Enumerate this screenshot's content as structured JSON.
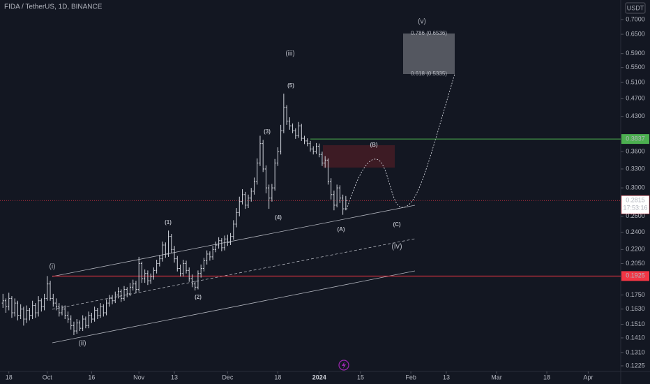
{
  "chart_data": {
    "type": "ohlc",
    "title": "FIDA / TetherUS, 1D, BINANCE",
    "currency": "USDT",
    "countdown": "17:53:16",
    "log_scale": true,
    "grid": false,
    "color": "#d1d4dc",
    "ylim": [
      0.1191,
      0.7724
    ],
    "yticks": [
      {
        "value": 0.7,
        "label": "0.7000"
      },
      {
        "value": 0.65,
        "label": "0.6500"
      },
      {
        "value": 0.59,
        "label": "0.5900"
      },
      {
        "value": 0.55,
        "label": "0.5500"
      },
      {
        "value": 0.51,
        "label": "0.5100"
      },
      {
        "value": 0.47,
        "label": "0.4700"
      },
      {
        "value": 0.43,
        "label": "0.4300"
      },
      {
        "value": 0.36,
        "label": "0.3600"
      },
      {
        "value": 0.33,
        "label": "0.3300"
      },
      {
        "value": 0.3,
        "label": "0.3000"
      },
      {
        "value": 0.26,
        "label": "0.2600"
      },
      {
        "value": 0.24,
        "label": "0.2400"
      },
      {
        "value": 0.22,
        "label": "0.2200"
      },
      {
        "value": 0.205,
        "label": "0.2050"
      },
      {
        "value": 0.175,
        "label": "0.1750"
      },
      {
        "value": 0.163,
        "label": "0.1630"
      },
      {
        "value": 0.151,
        "label": "0.1510"
      },
      {
        "value": 0.141,
        "label": "0.1410"
      },
      {
        "value": 0.131,
        "label": "0.1310"
      },
      {
        "value": 0.1225,
        "label": "0.1225"
      }
    ],
    "xlim": [
      "2023-09-15",
      "2024-04-12"
    ],
    "xticks": [
      {
        "value": "2023-09-18",
        "label": "18"
      },
      {
        "value": "2023-10-01",
        "label": "Oct"
      },
      {
        "value": "2023-10-16",
        "label": "16"
      },
      {
        "value": "2023-11-01",
        "label": "Nov"
      },
      {
        "value": "2023-11-13",
        "label": "13"
      },
      {
        "value": "2023-12-01",
        "label": "Dec"
      },
      {
        "value": "2023-12-18",
        "label": "18"
      },
      {
        "value": "2024-01-01",
        "label": "2024"
      },
      {
        "value": "2024-01-15",
        "label": "15"
      },
      {
        "value": "2024-02-01",
        "label": "Feb"
      },
      {
        "value": "2024-02-13",
        "label": "13"
      },
      {
        "value": "2024-03-01",
        "label": "Mar"
      },
      {
        "value": "2024-03-18",
        "label": "18"
      },
      {
        "value": "2024-04-01",
        "label": "Apr"
      }
    ],
    "x": [
      "2023-09-16",
      "2023-09-17",
      "2023-09-18",
      "2023-09-19",
      "2023-09-20",
      "2023-09-21",
      "2023-09-22",
      "2023-09-23",
      "2023-09-24",
      "2023-09-25",
      "2023-09-26",
      "2023-09-27",
      "2023-09-28",
      "2023-09-29",
      "2023-09-30",
      "2023-10-01",
      "2023-10-02",
      "2023-10-03",
      "2023-10-04",
      "2023-10-05",
      "2023-10-06",
      "2023-10-07",
      "2023-10-08",
      "2023-10-09",
      "2023-10-10",
      "2023-10-11",
      "2023-10-12",
      "2023-10-13",
      "2023-10-14",
      "2023-10-15",
      "2023-10-16",
      "2023-10-17",
      "2023-10-18",
      "2023-10-19",
      "2023-10-20",
      "2023-10-21",
      "2023-10-22",
      "2023-10-23",
      "2023-10-24",
      "2023-10-25",
      "2023-10-26",
      "2023-10-27",
      "2023-10-28",
      "2023-10-29",
      "2023-10-30",
      "2023-10-31",
      "2023-11-01",
      "2023-11-02",
      "2023-11-03",
      "2023-11-04",
      "2023-11-05",
      "2023-11-06",
      "2023-11-07",
      "2023-11-08",
      "2023-11-09",
      "2023-11-10",
      "2023-11-11",
      "2023-11-12",
      "2023-11-13",
      "2023-11-14",
      "2023-11-15",
      "2023-11-16",
      "2023-11-17",
      "2023-11-18",
      "2023-11-19",
      "2023-11-20",
      "2023-11-21",
      "2023-11-22",
      "2023-11-23",
      "2023-11-24",
      "2023-11-25",
      "2023-11-26",
      "2023-11-27",
      "2023-11-28",
      "2023-11-29",
      "2023-11-30",
      "2023-12-01",
      "2023-12-02",
      "2023-12-03",
      "2023-12-04",
      "2023-12-05",
      "2023-12-06",
      "2023-12-07",
      "2023-12-08",
      "2023-12-09",
      "2023-12-10",
      "2023-12-11",
      "2023-12-12",
      "2023-12-13",
      "2023-12-14",
      "2023-12-15",
      "2023-12-16",
      "2023-12-17",
      "2023-12-18",
      "2023-12-19",
      "2023-12-20",
      "2023-12-21",
      "2023-12-22",
      "2023-12-23",
      "2023-12-24",
      "2023-12-25",
      "2023-12-26",
      "2023-12-27",
      "2023-12-28",
      "2023-12-29",
      "2023-12-30",
      "2023-12-31",
      "2024-01-01",
      "2024-01-02",
      "2024-01-03",
      "2024-01-04",
      "2024-01-05",
      "2024-01-06",
      "2024-01-07",
      "2024-01-08",
      "2024-01-09",
      "2024-01-10"
    ],
    "open": [
      0.168,
      0.17,
      0.165,
      0.172,
      0.16,
      0.168,
      0.158,
      0.163,
      0.155,
      0.162,
      0.158,
      0.166,
      0.16,
      0.17,
      0.165,
      0.172,
      0.185,
      0.172,
      0.168,
      0.165,
      0.16,
      0.163,
      0.158,
      0.155,
      0.15,
      0.146,
      0.152,
      0.148,
      0.155,
      0.15,
      0.158,
      0.155,
      0.162,
      0.158,
      0.165,
      0.16,
      0.168,
      0.172,
      0.17,
      0.175,
      0.178,
      0.172,
      0.18,
      0.176,
      0.182,
      0.185,
      0.18,
      0.205,
      0.19,
      0.195,
      0.188,
      0.192,
      0.198,
      0.205,
      0.21,
      0.225,
      0.215,
      0.235,
      0.22,
      0.21,
      0.2,
      0.195,
      0.205,
      0.198,
      0.19,
      0.185,
      0.182,
      0.195,
      0.2,
      0.208,
      0.215,
      0.212,
      0.22,
      0.225,
      0.23,
      0.222,
      0.232,
      0.228,
      0.235,
      0.25,
      0.265,
      0.28,
      0.29,
      0.275,
      0.285,
      0.295,
      0.31,
      0.34,
      0.375,
      0.33,
      0.3,
      0.285,
      0.3,
      0.34,
      0.36,
      0.4,
      0.45,
      0.42,
      0.41,
      0.4,
      0.39,
      0.41,
      0.385,
      0.38,
      0.375,
      0.365,
      0.36,
      0.37,
      0.355,
      0.34,
      0.345,
      0.31,
      0.29,
      0.275,
      0.3,
      0.285,
      0.27
    ],
    "high": [
      0.176,
      0.172,
      0.177,
      0.174,
      0.172,
      0.17,
      0.167,
      0.165,
      0.166,
      0.164,
      0.17,
      0.168,
      0.174,
      0.172,
      0.176,
      0.1925,
      0.188,
      0.176,
      0.172,
      0.168,
      0.166,
      0.166,
      0.161,
      0.158,
      0.153,
      0.155,
      0.154,
      0.158,
      0.157,
      0.161,
      0.16,
      0.165,
      0.164,
      0.168,
      0.167,
      0.171,
      0.175,
      0.175,
      0.178,
      0.182,
      0.18,
      0.183,
      0.182,
      0.186,
      0.189,
      0.188,
      0.212,
      0.207,
      0.199,
      0.198,
      0.195,
      0.201,
      0.209,
      0.214,
      0.229,
      0.228,
      0.242,
      0.238,
      0.224,
      0.213,
      0.204,
      0.209,
      0.208,
      0.201,
      0.194,
      0.188,
      0.198,
      0.204,
      0.211,
      0.219,
      0.218,
      0.224,
      0.229,
      0.234,
      0.233,
      0.236,
      0.237,
      0.239,
      0.255,
      0.271,
      0.287,
      0.298,
      0.294,
      0.29,
      0.3,
      0.316,
      0.348,
      0.39,
      0.382,
      0.336,
      0.305,
      0.306,
      0.347,
      0.368,
      0.412,
      0.482,
      0.455,
      0.428,
      0.415,
      0.405,
      0.418,
      0.414,
      0.39,
      0.385,
      0.38,
      0.37,
      0.376,
      0.375,
      0.36,
      0.352,
      0.348,
      0.315,
      0.296,
      0.305,
      0.304,
      0.29,
      0.288
    ],
    "low": [
      0.164,
      0.16,
      0.162,
      0.156,
      0.157,
      0.154,
      0.155,
      0.15,
      0.152,
      0.154,
      0.155,
      0.156,
      0.157,
      0.161,
      0.162,
      0.17,
      0.17,
      0.165,
      0.162,
      0.157,
      0.158,
      0.155,
      0.152,
      0.147,
      0.143,
      0.144,
      0.146,
      0.146,
      0.148,
      0.148,
      0.152,
      0.153,
      0.155,
      0.156,
      0.157,
      0.158,
      0.165,
      0.167,
      0.168,
      0.172,
      0.169,
      0.17,
      0.173,
      0.174,
      0.179,
      0.177,
      0.178,
      0.186,
      0.186,
      0.184,
      0.185,
      0.189,
      0.195,
      0.202,
      0.207,
      0.211,
      0.212,
      0.216,
      0.206,
      0.197,
      0.192,
      0.192,
      0.195,
      0.187,
      0.182,
      0.179,
      0.18,
      0.191,
      0.197,
      0.204,
      0.208,
      0.209,
      0.217,
      0.221,
      0.218,
      0.219,
      0.224,
      0.225,
      0.231,
      0.246,
      0.26,
      0.276,
      0.27,
      0.271,
      0.28,
      0.29,
      0.305,
      0.335,
      0.325,
      0.292,
      0.27,
      0.28,
      0.296,
      0.335,
      0.355,
      0.395,
      0.412,
      0.402,
      0.395,
      0.384,
      0.386,
      0.38,
      0.374,
      0.37,
      0.36,
      0.355,
      0.356,
      0.35,
      0.335,
      0.332,
      0.305,
      0.283,
      0.268,
      0.272,
      0.278,
      0.262,
      0.268
    ],
    "close": [
      0.17,
      0.165,
      0.172,
      0.16,
      0.168,
      0.158,
      0.163,
      0.155,
      0.162,
      0.158,
      0.166,
      0.16,
      0.17,
      0.165,
      0.172,
      0.185,
      0.172,
      0.168,
      0.165,
      0.16,
      0.163,
      0.158,
      0.155,
      0.15,
      0.146,
      0.152,
      0.148,
      0.155,
      0.15,
      0.158,
      0.155,
      0.162,
      0.158,
      0.165,
      0.16,
      0.168,
      0.172,
      0.17,
      0.175,
      0.178,
      0.172,
      0.18,
      0.176,
      0.182,
      0.185,
      0.18,
      0.205,
      0.19,
      0.195,
      0.188,
      0.192,
      0.198,
      0.205,
      0.21,
      0.225,
      0.215,
      0.235,
      0.22,
      0.21,
      0.2,
      0.195,
      0.205,
      0.198,
      0.19,
      0.185,
      0.182,
      0.195,
      0.2,
      0.208,
      0.215,
      0.212,
      0.22,
      0.225,
      0.23,
      0.222,
      0.232,
      0.228,
      0.235,
      0.25,
      0.265,
      0.28,
      0.29,
      0.275,
      0.285,
      0.295,
      0.31,
      0.34,
      0.375,
      0.33,
      0.3,
      0.285,
      0.3,
      0.34,
      0.36,
      0.4,
      0.45,
      0.42,
      0.41,
      0.4,
      0.39,
      0.41,
      0.385,
      0.38,
      0.375,
      0.365,
      0.36,
      0.37,
      0.355,
      0.34,
      0.345,
      0.31,
      0.29,
      0.275,
      0.3,
      0.285,
      0.27,
      0.2815
    ],
    "hlines": [
      {
        "value": 0.3837,
        "color": "#4caf50"
      },
      {
        "value": 0.1925,
        "color": "#f23645"
      }
    ],
    "last_price_color": "#f23645",
    "annotations": [
      {
        "text": "(i)",
        "color": "#f7931a"
      },
      {
        "text": "(ii)",
        "color": "#f7931a"
      },
      {
        "text": "(iii)",
        "color": "#f7931a"
      },
      {
        "text": "(iv)",
        "color": "#f7931a"
      },
      {
        "text": "(v)",
        "color": "#f7931a"
      },
      {
        "text": "(1)",
        "color": "#ffffff"
      },
      {
        "text": "(2)",
        "color": "#ffffff"
      },
      {
        "text": "(3)",
        "color": "#ffffff"
      },
      {
        "text": "(4)",
        "color": "#ffffff"
      },
      {
        "text": "(5)",
        "color": "#ffffff"
      },
      {
        "text": "(A)",
        "color": "#f5c542"
      },
      {
        "text": "(B)",
        "color": "#f5c542"
      },
      {
        "text": "(C)",
        "color": "#f5c542"
      }
    ],
    "fib_labels": [
      "0.786 (0.6536)",
      "0.618 (0.5335)"
    ]
  }
}
